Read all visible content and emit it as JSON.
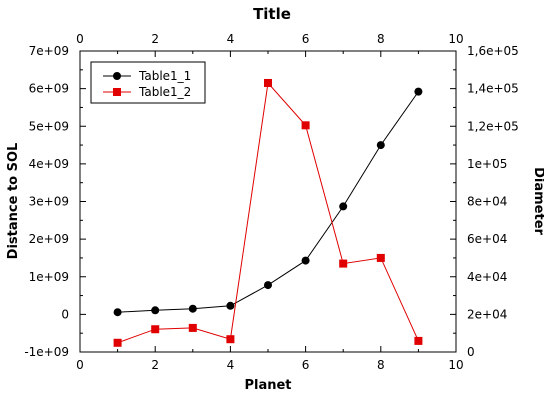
{
  "chart_data": {
    "type": "line",
    "title": "Title",
    "xlabel": "Planet",
    "ylabel_left": "Distance to SOL",
    "ylabel_right": "Diameter",
    "xlim": [
      0,
      10
    ],
    "ylim_left": [
      -1000000000,
      7000000000
    ],
    "ylim_right": [
      0,
      160000
    ],
    "x_ticks": [
      "0",
      "2",
      "4",
      "6",
      "8",
      "10"
    ],
    "y_left_ticks": [
      "-1e+09",
      "0",
      "1e+09",
      "2e+09",
      "3e+09",
      "4e+09",
      "5e+09",
      "6e+09",
      "7e+09"
    ],
    "y_right_ticks": [
      "0",
      "2e+04",
      "4e+04",
      "6e+04",
      "8e+04",
      "1e+05",
      "1,2e+05",
      "1,4e+05",
      "1,6e+05"
    ],
    "grid": false,
    "legend_position": "top-left",
    "series": [
      {
        "name": "Table1_1",
        "axis": "left",
        "color": "#000000",
        "marker": "circle",
        "x": [
          1,
          2,
          3,
          4,
          5,
          6,
          7,
          8,
          9
        ],
        "values": [
          58000000,
          108000000,
          150000000,
          228000000,
          778000000,
          1430000000,
          2870000000,
          4500000000,
          5920000000
        ]
      },
      {
        "name": "Table1_2",
        "axis": "right",
        "color": "#e00000",
        "marker": "square",
        "x": [
          1,
          2,
          3,
          4,
          5,
          6,
          7,
          8,
          9
        ],
        "values": [
          4900,
          12100,
          12800,
          6800,
          143000,
          120500,
          47000,
          50000,
          5900
        ]
      }
    ]
  }
}
